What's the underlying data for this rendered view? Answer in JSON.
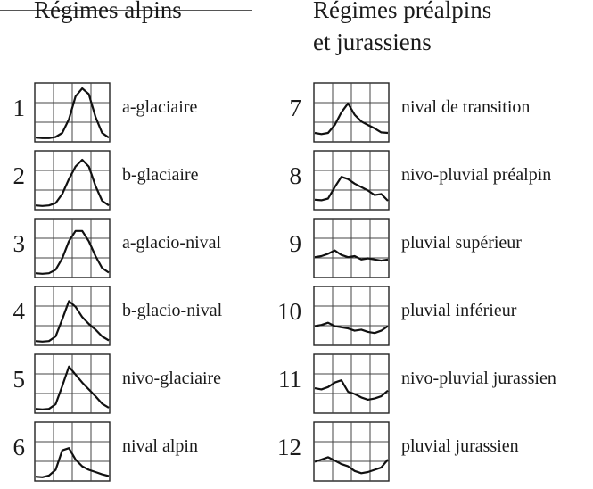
{
  "columns": [
    {
      "title_lines": [
        "Régimes alpins"
      ],
      "regimes": [
        {
          "number": "1",
          "label": "a-glaciaire"
        },
        {
          "number": "2",
          "label": "b-glaciaire"
        },
        {
          "number": "3",
          "label": "a-glacio-nival"
        },
        {
          "number": "4",
          "label": "b-glacio-nival"
        },
        {
          "number": "5",
          "label": "nivo-glaciaire"
        },
        {
          "number": "6",
          "label": "nival alpin"
        }
      ]
    },
    {
      "title_lines": [
        "Régimes préalpins",
        "et jurassiens"
      ],
      "regimes": [
        {
          "number": "7",
          "label": "nival de transition"
        },
        {
          "number": "8",
          "label": "nivo-pluvial préalpin"
        },
        {
          "number": "9",
          "label": "pluvial supérieur"
        },
        {
          "number": "10",
          "label": "pluvial inférieur"
        },
        {
          "number": "11",
          "label": "nivo-pluvial jurassien"
        },
        {
          "number": "12",
          "label": "pluvial jurassien"
        }
      ]
    }
  ],
  "chart_data": {
    "type": "line",
    "x": [
      "1",
      "2",
      "3",
      "4",
      "5",
      "6",
      "7",
      "8",
      "9",
      "10",
      "11",
      "12"
    ],
    "grid": true,
    "note": "Small-multiple curves; y values are relative (0 = bottom of box, 1 = top).",
    "series": [
      {
        "values": [
          0.06,
          0.05,
          0.05,
          0.07,
          0.14,
          0.38,
          0.78,
          0.92,
          0.82,
          0.42,
          0.14,
          0.06
        ]
      },
      {
        "values": [
          0.06,
          0.05,
          0.06,
          0.1,
          0.26,
          0.52,
          0.74,
          0.86,
          0.74,
          0.4,
          0.14,
          0.06
        ]
      },
      {
        "values": [
          0.06,
          0.05,
          0.06,
          0.12,
          0.32,
          0.62,
          0.8,
          0.8,
          0.62,
          0.36,
          0.15,
          0.07
        ]
      },
      {
        "values": [
          0.06,
          0.05,
          0.06,
          0.14,
          0.44,
          0.76,
          0.66,
          0.48,
          0.36,
          0.26,
          0.14,
          0.07
        ]
      },
      {
        "values": [
          0.06,
          0.05,
          0.06,
          0.14,
          0.46,
          0.8,
          0.66,
          0.52,
          0.4,
          0.28,
          0.15,
          0.08
        ]
      },
      {
        "values": [
          0.06,
          0.05,
          0.08,
          0.18,
          0.52,
          0.56,
          0.36,
          0.24,
          0.18,
          0.14,
          0.1,
          0.07
        ]
      },
      {
        "values": [
          0.14,
          0.12,
          0.14,
          0.28,
          0.5,
          0.66,
          0.46,
          0.34,
          0.28,
          0.22,
          0.15,
          0.14
        ]
      },
      {
        "values": [
          0.16,
          0.15,
          0.18,
          0.38,
          0.56,
          0.52,
          0.44,
          0.38,
          0.32,
          0.24,
          0.26,
          0.14
        ]
      },
      {
        "values": [
          0.34,
          0.36,
          0.4,
          0.46,
          0.38,
          0.34,
          0.36,
          0.3,
          0.32,
          0.3,
          0.28,
          0.3
        ]
      },
      {
        "values": [
          0.32,
          0.34,
          0.38,
          0.32,
          0.3,
          0.28,
          0.24,
          0.26,
          0.22,
          0.2,
          0.24,
          0.32
        ]
      },
      {
        "values": [
          0.42,
          0.4,
          0.44,
          0.52,
          0.56,
          0.36,
          0.32,
          0.26,
          0.22,
          0.24,
          0.28,
          0.38
        ]
      },
      {
        "values": [
          0.32,
          0.36,
          0.4,
          0.34,
          0.28,
          0.24,
          0.16,
          0.12,
          0.14,
          0.18,
          0.22,
          0.36
        ]
      }
    ]
  }
}
